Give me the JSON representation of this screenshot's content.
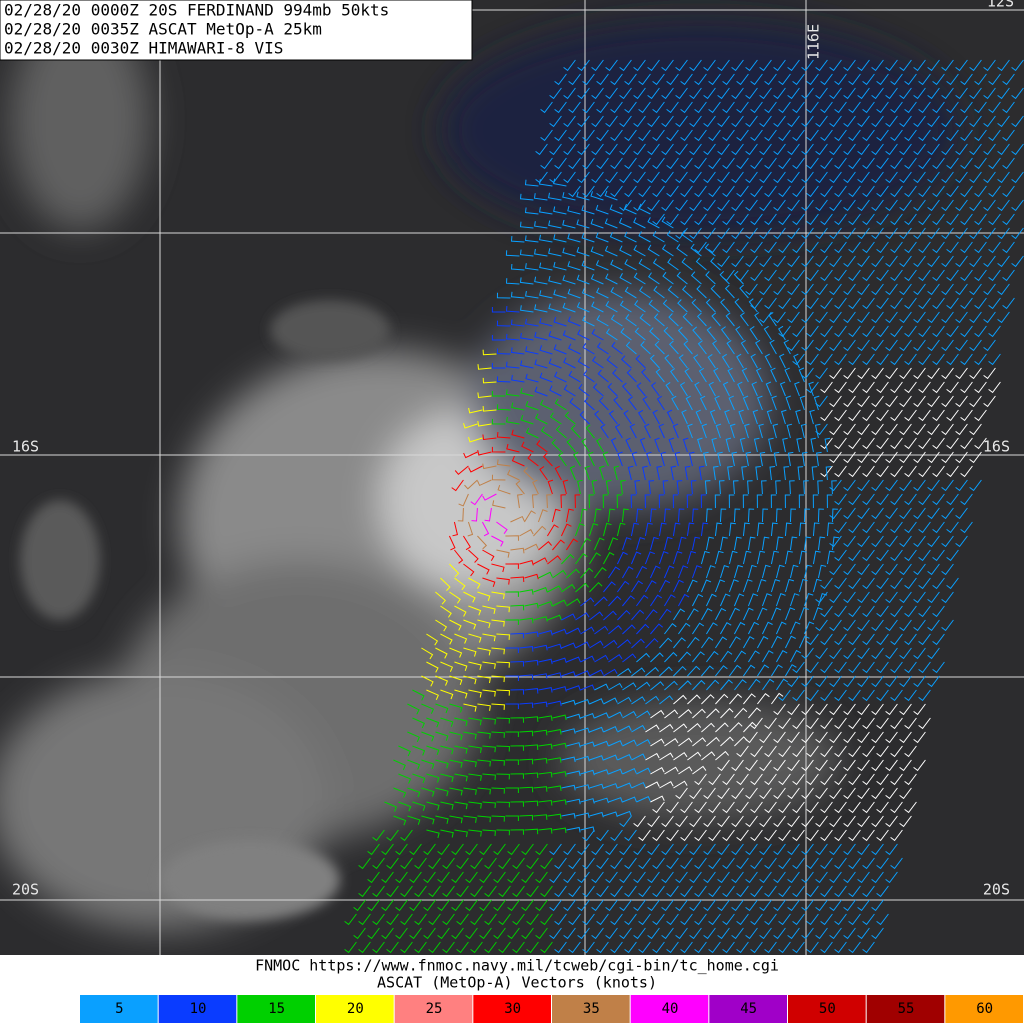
{
  "header": {
    "lines": [
      "02/28/20 0000Z  20S FERDINAND 994mb 50kts",
      "02/28/20 0035Z  ASCAT MetOp-A 25km",
      "02/28/20 0030Z  HIMAWARI-8 VIS"
    ]
  },
  "grid_labels": {
    "lat_16_left": "16S",
    "lat_16_right": "16S",
    "lat_20_left": "20S",
    "lat_20_right": "20S",
    "lon_116": "116E",
    "lat_12_right": "12S"
  },
  "footer": {
    "source": "FNMOC https://www.fnmoc.navy.mil/tcweb/cgi-bin/tc_home.cgi",
    "caption": "ASCAT (MetOp-A) Vectors (knots)"
  },
  "legend": {
    "items": [
      {
        "value": 5,
        "color": "#0aa0ff"
      },
      {
        "value": 10,
        "color": "#0a3cff"
      },
      {
        "value": 15,
        "color": "#00d000"
      },
      {
        "value": 20,
        "color": "#ffff00"
      },
      {
        "value": 25,
        "color": "#ff8080"
      },
      {
        "value": 30,
        "color": "#ff0000"
      },
      {
        "value": 35,
        "color": "#c08048"
      },
      {
        "value": 40,
        "color": "#ff00ff"
      },
      {
        "value": 45,
        "color": "#a000c8"
      },
      {
        "value": 50,
        "color": "#d00000"
      },
      {
        "value": 55,
        "color": "#a00000"
      },
      {
        "value": 60,
        "color": "#ff9900"
      }
    ]
  }
}
